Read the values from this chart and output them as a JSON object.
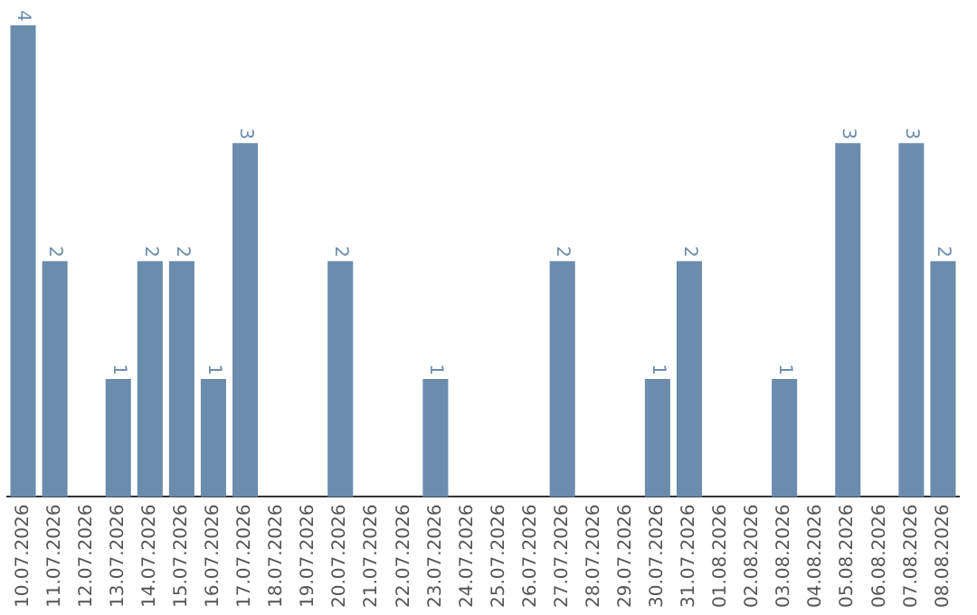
{
  "chart_data": {
    "type": "bar",
    "categories": [
      "10.07.2026",
      "11.07.2026",
      "12.07.2026",
      "13.07.2026",
      "14.07.2026",
      "15.07.2026",
      "16.07.2026",
      "17.07.2026",
      "18.07.2026",
      "19.07.2026",
      "20.07.2026",
      "21.07.2026",
      "22.07.2026",
      "23.07.2026",
      "24.07.2026",
      "25.07.2026",
      "26.07.2026",
      "27.07.2026",
      "28.07.2026",
      "29.07.2026",
      "30.07.2026",
      "31.07.2026",
      "01.08.2026",
      "02.08.2026",
      "03.08.2026",
      "04.08.2026",
      "05.08.2026",
      "06.08.2026",
      "07.08.2026",
      "08.08.2026"
    ],
    "values": [
      4,
      2,
      0,
      1,
      2,
      2,
      1,
      3,
      0,
      0,
      2,
      0,
      0,
      1,
      0,
      0,
      0,
      2,
      0,
      0,
      1,
      2,
      0,
      0,
      1,
      0,
      3,
      0,
      3,
      2
    ],
    "value_labels": [
      "4",
      "2",
      null,
      "1",
      "2",
      "2",
      "1",
      "3",
      null,
      null,
      "2",
      null,
      null,
      "1",
      null,
      null,
      null,
      "2",
      null,
      null,
      "1",
      "2",
      null,
      null,
      "1",
      null,
      "3",
      null,
      "3",
      "2"
    ],
    "color": "#6b8cac",
    "ylim": [
      0,
      4
    ],
    "tick_labels": "x",
    "grid": false,
    "legend": false
  }
}
